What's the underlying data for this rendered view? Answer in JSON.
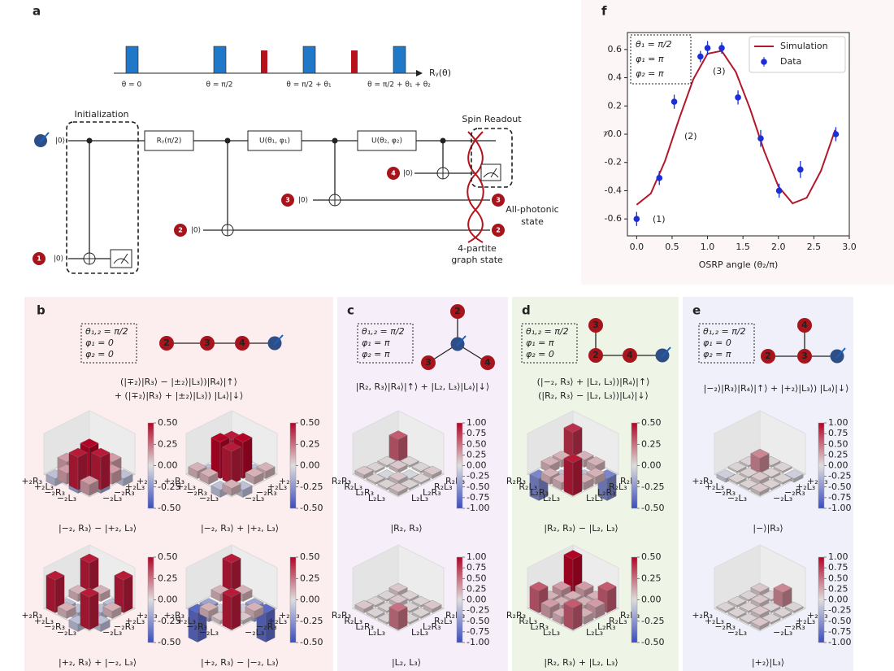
{
  "panel_a": {
    "label": "a",
    "pulse_axis": "Rᵧ(θ)",
    "pulse_labels": [
      "θ = 0",
      "θ = π/2",
      "θ = π/2 + θ₁",
      "θ = π/2 + θ₁ + θ₂"
    ],
    "initialization": "Initialization",
    "ket0": "|0⟩",
    "gates": [
      "Rᵧ(π/2)",
      "U(θ₁, φ₁)",
      "U(θ₂, φ₂)"
    ],
    "spin_readout": "Spin Readout",
    "qubits": [
      "1",
      "2",
      "3",
      "4"
    ],
    "all_photonic": [
      "All-photonic",
      "state"
    ],
    "graph_state": [
      "4-partite",
      "graph state"
    ]
  },
  "chart_data": {
    "type": "line",
    "label": "f",
    "params": [
      "θ₁ = π/2",
      "φ₁ = π",
      "φ₂ = π"
    ],
    "ylabel": "𝒱",
    "xlabel": "OSRP angle (θ₂/π)",
    "annotations": [
      "(1)",
      "(2)",
      "(3)"
    ],
    "xlim": [
      -0.13,
      3.0
    ],
    "ylim": [
      -0.72,
      0.72
    ],
    "xticks": [
      {
        "value": 0,
        "label": "0.0"
      },
      0.5,
      {
        "value": 1,
        "label": "1.0"
      },
      1.5,
      {
        "value": 2,
        "label": "2.0"
      },
      2.5,
      {
        "value": 3,
        "label": "3.0"
      }
    ],
    "yticks": [
      -0.6,
      -0.4,
      -0.2,
      {
        "value": 0,
        "label": "0.0"
      },
      0.2,
      0.4,
      0.6
    ],
    "legend": "upper right",
    "series": [
      {
        "name": "Simulation",
        "style": "line",
        "color": "#b2182b",
        "x": [
          0,
          0.2,
          0.4,
          0.6,
          0.8,
          1.0,
          1.2,
          1.4,
          1.6,
          1.8,
          2.0,
          2.2,
          2.4,
          2.6,
          2.8
        ],
        "values": [
          -0.5,
          -0.42,
          -0.19,
          0.11,
          0.39,
          0.57,
          0.59,
          0.44,
          0.18,
          -0.12,
          -0.37,
          -0.49,
          -0.45,
          -0.26,
          0.03
        ]
      },
      {
        "name": "Data",
        "style": "points",
        "color": "#1c2fd6",
        "x": [
          0,
          0.32,
          0.53,
          0.9,
          1.0,
          1.2,
          1.43,
          1.75,
          2.01,
          2.31,
          2.81
        ],
        "values": [
          -0.6,
          -0.31,
          0.23,
          0.55,
          0.61,
          0.61,
          0.26,
          -0.03,
          -0.4,
          -0.25,
          0.0
        ],
        "errors": [
          0.05,
          0.05,
          0.05,
          0.04,
          0.05,
          0.04,
          0.05,
          0.06,
          0.05,
          0.06,
          0.05
        ]
      }
    ]
  },
  "panels": [
    {
      "label": "b",
      "params": [
        "θ₁,₂ = π/2",
        "φ₁ = 0",
        "φ₂ = 0"
      ],
      "nodes": [
        "2",
        "3",
        "4"
      ],
      "state": [
        "(|∓₂⟩|R₃⟩ − |±₂⟩|L₃⟩)|R₄⟩|↑⟩",
        "+ (|∓₂⟩|R₃⟩ + |±₂⟩|L₃⟩) |L₄⟩|↓⟩"
      ],
      "axis_labels": [
        "+₂R₃",
        "+₂L₃",
        "−₂R₃",
        "−₂L₃"
      ],
      "clim": [
        -0.5,
        0.5
      ],
      "cticks": [
        {
          "value": 0.5,
          "label": "0.50"
        },
        {
          "value": 0.25,
          "label": "0.25"
        },
        {
          "value": 0,
          "label": "0.00"
        },
        -0.25,
        {
          "value": -0.5,
          "label": "-0.50"
        }
      ],
      "plots": [
        {
          "caption": "|−₂, R₃⟩ − |+₂, L₃⟩",
          "matrix": [
            [
              0.1,
              0.1,
              0.15,
              -0.1
            ],
            [
              0.1,
              0.1,
              -0.2,
              0.15
            ],
            [
              0.15,
              -0.2,
              0.5,
              0.45
            ],
            [
              -0.1,
              0.15,
              0.45,
              0.15
            ]
          ]
        },
        {
          "caption": "|−₂, R₃⟩ + |+₂, L₃⟩",
          "matrix": [
            [
              0.1,
              0.1,
              -0.1,
              0.1
            ],
            [
              0.1,
              0.45,
              0.5,
              0.1
            ],
            [
              -0.1,
              0.5,
              0.45,
              -0.1
            ],
            [
              0.1,
              0.1,
              -0.1,
              0.1
            ]
          ]
        },
        {
          "caption": "|+₂, R₃⟩ + |−₂, L₃⟩",
          "matrix": [
            [
              0.45,
              0.1,
              -0.1,
              0.45
            ],
            [
              0.1,
              0.1,
              -0.1,
              0.1
            ],
            [
              -0.1,
              -0.1,
              0.1,
              -0.1
            ],
            [
              0.45,
              0.1,
              -0.1,
              0.45
            ]
          ]
        },
        {
          "caption": "|+₂, R₃⟩ − |−₂, L₃⟩",
          "matrix": [
            [
              0.45,
              0.1,
              -0.2,
              -0.4
            ],
            [
              0.1,
              0.05,
              -0.05,
              0.1
            ],
            [
              -0.2,
              -0.05,
              0.1,
              0.05
            ],
            [
              -0.4,
              0.1,
              0.05,
              0.45
            ]
          ]
        }
      ]
    },
    {
      "label": "c",
      "params": [
        "θ₁,₂ = π/2",
        "φ₁ = π",
        "φ₂ = π"
      ],
      "nodes": [
        "2",
        "3",
        "4"
      ],
      "state": [
        "|R₂, R₃⟩|R₄⟩|↑⟩ + |L₂, L₃⟩|L₄⟩|↓⟩"
      ],
      "axis_labels": [
        "R₂R₃",
        "R₂L₃",
        "L₂R₃",
        "L₂L₃"
      ],
      "clim": [
        -1,
        1
      ],
      "cticks": [
        {
          "value": 1,
          "label": "1.00"
        },
        0.75,
        {
          "value": 0.5,
          "label": "0.50"
        },
        0.25,
        {
          "value": 0,
          "label": "0.00"
        },
        -0.25,
        {
          "value": -0.5,
          "label": "-0.50"
        },
        -0.75,
        {
          "value": -1,
          "label": "-1.00"
        }
      ],
      "plots": [
        {
          "caption": "|R₂, R₃⟩",
          "matrix": [
            [
              0.6,
              0.05,
              0.05,
              0.1
            ],
            [
              0.05,
              0.1,
              -0.05,
              0.05
            ],
            [
              0.05,
              -0.05,
              0.1,
              0.05
            ],
            [
              0.1,
              0.05,
              0.05,
              0.1
            ]
          ]
        },
        {
          "caption": "|L₂, L₃⟩",
          "matrix": [
            [
              0.1,
              0.05,
              0.05,
              0.1
            ],
            [
              0.05,
              0.1,
              0.05,
              0.05
            ],
            [
              0.05,
              0.05,
              0.1,
              0.05
            ],
            [
              0.1,
              0.05,
              0.05,
              0.5
            ]
          ]
        }
      ]
    },
    {
      "label": "d",
      "params": [
        "θ₁,₂ = π/2",
        "φ₁ = π",
        "φ₂ = 0"
      ],
      "nodes": [
        "3",
        "2",
        "4"
      ],
      "state": [
        "(|−₂, R₃⟩ + |L₂, L₃⟩)|R₄⟩|↑⟩",
        "(|R₂, R₃⟩ − |L₂, L₃⟩)|L₄⟩|↓⟩"
      ],
      "axis_labels": [
        "R₂R₃",
        "R₂L₃",
        "L₂R₃",
        "L₂L₃"
      ],
      "clim": [
        -0.5,
        0.5
      ],
      "cticks": [
        {
          "value": 0.5,
          "label": "0.50"
        },
        {
          "value": 0.25,
          "label": "0.25"
        },
        {
          "value": 0,
          "label": "0.00"
        },
        -0.25,
        {
          "value": -0.5,
          "label": "-0.50"
        }
      ],
      "plots": [
        {
          "caption": "|R₂, R₃⟩ − |L₂, L₃⟩",
          "matrix": [
            [
              0.4,
              0.1,
              0.1,
              -0.3
            ],
            [
              0.1,
              0.1,
              -0.1,
              0.1
            ],
            [
              0.1,
              -0.1,
              0.15,
              0.1
            ],
            [
              -0.3,
              0.1,
              0.1,
              0.45
            ]
          ]
        },
        {
          "caption": "|R₂, R₃⟩ + |L₂, L₃⟩",
          "matrix": [
            [
              0.5,
              0.15,
              0.1,
              0.3
            ],
            [
              0.15,
              0.1,
              0.1,
              0.15
            ],
            [
              0.1,
              0.1,
              0.15,
              0.1
            ],
            [
              0.3,
              0.15,
              0.1,
              0.3
            ]
          ]
        }
      ]
    },
    {
      "label": "e",
      "params": [
        "θ₁,₂ = π/2",
        "φ₁ = 0",
        "φ₂ = π"
      ],
      "nodes": [
        "4",
        "2",
        "3"
      ],
      "state": [
        "|−₂⟩|R₃⟩|R₄⟩|↑⟩ + |+₂⟩|L₃⟩) |L₄⟩|↓⟩"
      ],
      "axis_labels": [
        "+₂R₃",
        "+₂L₃",
        "−₂R₃",
        "−₂L₃"
      ],
      "clim": [
        -1,
        1
      ],
      "cticks": [
        {
          "value": 1,
          "label": "1.00"
        },
        0.75,
        {
          "value": 0.5,
          "label": "0.50"
        },
        0.25,
        {
          "value": 0,
          "label": "0.00"
        },
        -0.25,
        {
          "value": -0.5,
          "label": "-0.50"
        },
        -0.75,
        {
          "value": -1,
          "label": "-1.00"
        }
      ],
      "plots": [
        {
          "caption": "|−⟩|R₃⟩",
          "matrix": [
            [
              0.1,
              0.05,
              0.05,
              -0.1
            ],
            [
              0.05,
              0.4,
              0.05,
              0.05
            ],
            [
              0.05,
              0.05,
              0.1,
              0.05
            ],
            [
              -0.1,
              0.05,
              0.05,
              0.1
            ]
          ]
        },
        {
          "caption": "|+₂⟩|L₃⟩",
          "matrix": [
            [
              0.1,
              0.05,
              0.4,
              0.05
            ],
            [
              0.05,
              0.1,
              0.05,
              0.05
            ],
            [
              0.05,
              0.05,
              0.1,
              0.05
            ],
            [
              0.05,
              0.05,
              0.05,
              0.1
            ]
          ]
        }
      ]
    }
  ]
}
